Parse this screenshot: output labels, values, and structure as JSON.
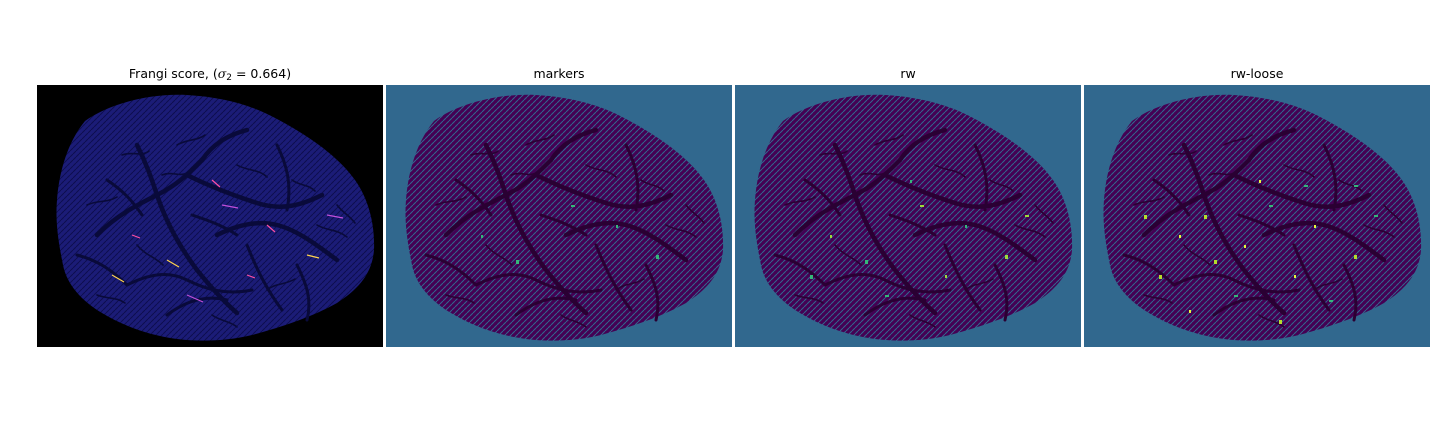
{
  "figure": {
    "panels": [
      {
        "id": "frangi",
        "title_prefix": "Frangi score, (",
        "title_sigma": "σ",
        "title_sub": "2",
        "title_eq": " = 0.664",
        "title_suffix": ")",
        "background": "#000000",
        "tissue": "#1b1c77",
        "vessel": "#090a3a",
        "grain": "#0d0e4e",
        "highlight": [
          "#ff4fa3",
          "#ffd34f",
          "#c14fd9"
        ]
      },
      {
        "id": "markers",
        "title": "markers",
        "background": "#31688e",
        "tissue": "#440154",
        "vessel": "#2a0033",
        "grain": "#31688e",
        "highlight": [
          "#35b779"
        ]
      },
      {
        "id": "rw",
        "title": "rw",
        "background": "#31688e",
        "tissue": "#440154",
        "vessel": "#2a0033",
        "grain": "#31688e",
        "highlight": [
          "#9fda3a",
          "#35b779"
        ]
      },
      {
        "id": "rw-loose",
        "title": "rw-loose",
        "background": "#31688e",
        "tissue": "#440154",
        "vessel": "#2a0033",
        "grain": "#31688e",
        "highlight": [
          "#e7f93b",
          "#b5de2b",
          "#35b779"
        ]
      }
    ]
  }
}
